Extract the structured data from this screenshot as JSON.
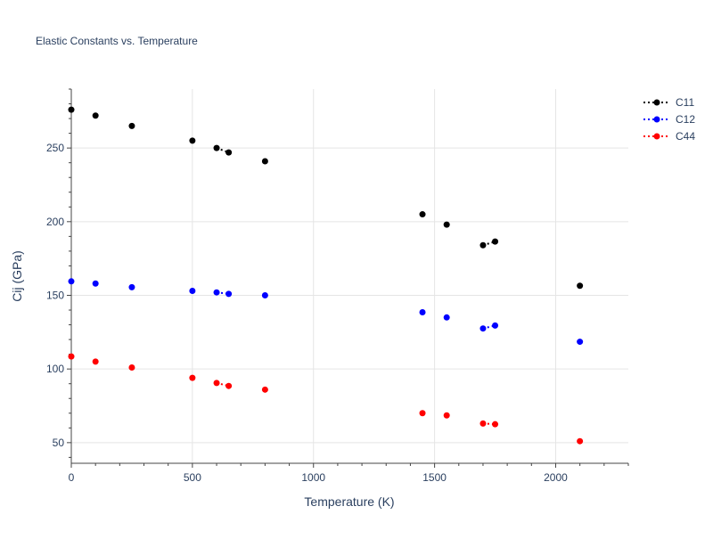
{
  "chart_data": {
    "type": "scatter",
    "title": "Elastic Constants vs. Temperature",
    "xlabel": "Temperature (K)",
    "ylabel": "Cij (GPa)",
    "xlim": [
      0,
      2300
    ],
    "ylim": [
      36,
      290
    ],
    "x_ticks": [
      0,
      500,
      1000,
      1500,
      2000
    ],
    "y_ticks": [
      50,
      100,
      150,
      200,
      250
    ],
    "grid": true,
    "legend_position": "top-right",
    "series": [
      {
        "name": "C11",
        "color": "#000000",
        "points": [
          {
            "x": 0,
            "y": 276
          },
          {
            "x": 100,
            "y": 272
          },
          {
            "x": 250,
            "y": 265
          },
          {
            "x": 500,
            "y": 255
          },
          {
            "x": 600,
            "y": 250
          },
          {
            "x": 650,
            "y": 247
          },
          {
            "x": 800,
            "y": 241
          },
          {
            "x": 1450,
            "y": 205
          },
          {
            "x": 1550,
            "y": 198
          },
          {
            "x": 1700,
            "y": 184
          },
          {
            "x": 1750,
            "y": 186.5
          },
          {
            "x": 2100,
            "y": 156.5
          }
        ],
        "dotted_segments": [
          [
            4,
            5
          ],
          [
            9,
            10
          ]
        ]
      },
      {
        "name": "C12",
        "color": "#0000ff",
        "points": [
          {
            "x": 0,
            "y": 159.5
          },
          {
            "x": 100,
            "y": 158
          },
          {
            "x": 250,
            "y": 155.5
          },
          {
            "x": 500,
            "y": 153
          },
          {
            "x": 600,
            "y": 152
          },
          {
            "x": 650,
            "y": 151
          },
          {
            "x": 800,
            "y": 150
          },
          {
            "x": 1450,
            "y": 138.5
          },
          {
            "x": 1550,
            "y": 135
          },
          {
            "x": 1700,
            "y": 127.5
          },
          {
            "x": 1750,
            "y": 129.5
          },
          {
            "x": 2100,
            "y": 118.5
          }
        ],
        "dotted_segments": [
          [
            4,
            5
          ],
          [
            9,
            10
          ]
        ]
      },
      {
        "name": "C44",
        "color": "#ff0000",
        "points": [
          {
            "x": 0,
            "y": 108.5
          },
          {
            "x": 100,
            "y": 105
          },
          {
            "x": 250,
            "y": 101
          },
          {
            "x": 500,
            "y": 94
          },
          {
            "x": 600,
            "y": 90.5
          },
          {
            "x": 650,
            "y": 88.5
          },
          {
            "x": 800,
            "y": 86
          },
          {
            "x": 1450,
            "y": 70
          },
          {
            "x": 1550,
            "y": 68.5
          },
          {
            "x": 1700,
            "y": 63
          },
          {
            "x": 1750,
            "y": 62.5
          },
          {
            "x": 2100,
            "y": 51
          }
        ],
        "dotted_segments": [
          [
            4,
            5
          ],
          [
            9,
            10
          ]
        ]
      }
    ]
  }
}
